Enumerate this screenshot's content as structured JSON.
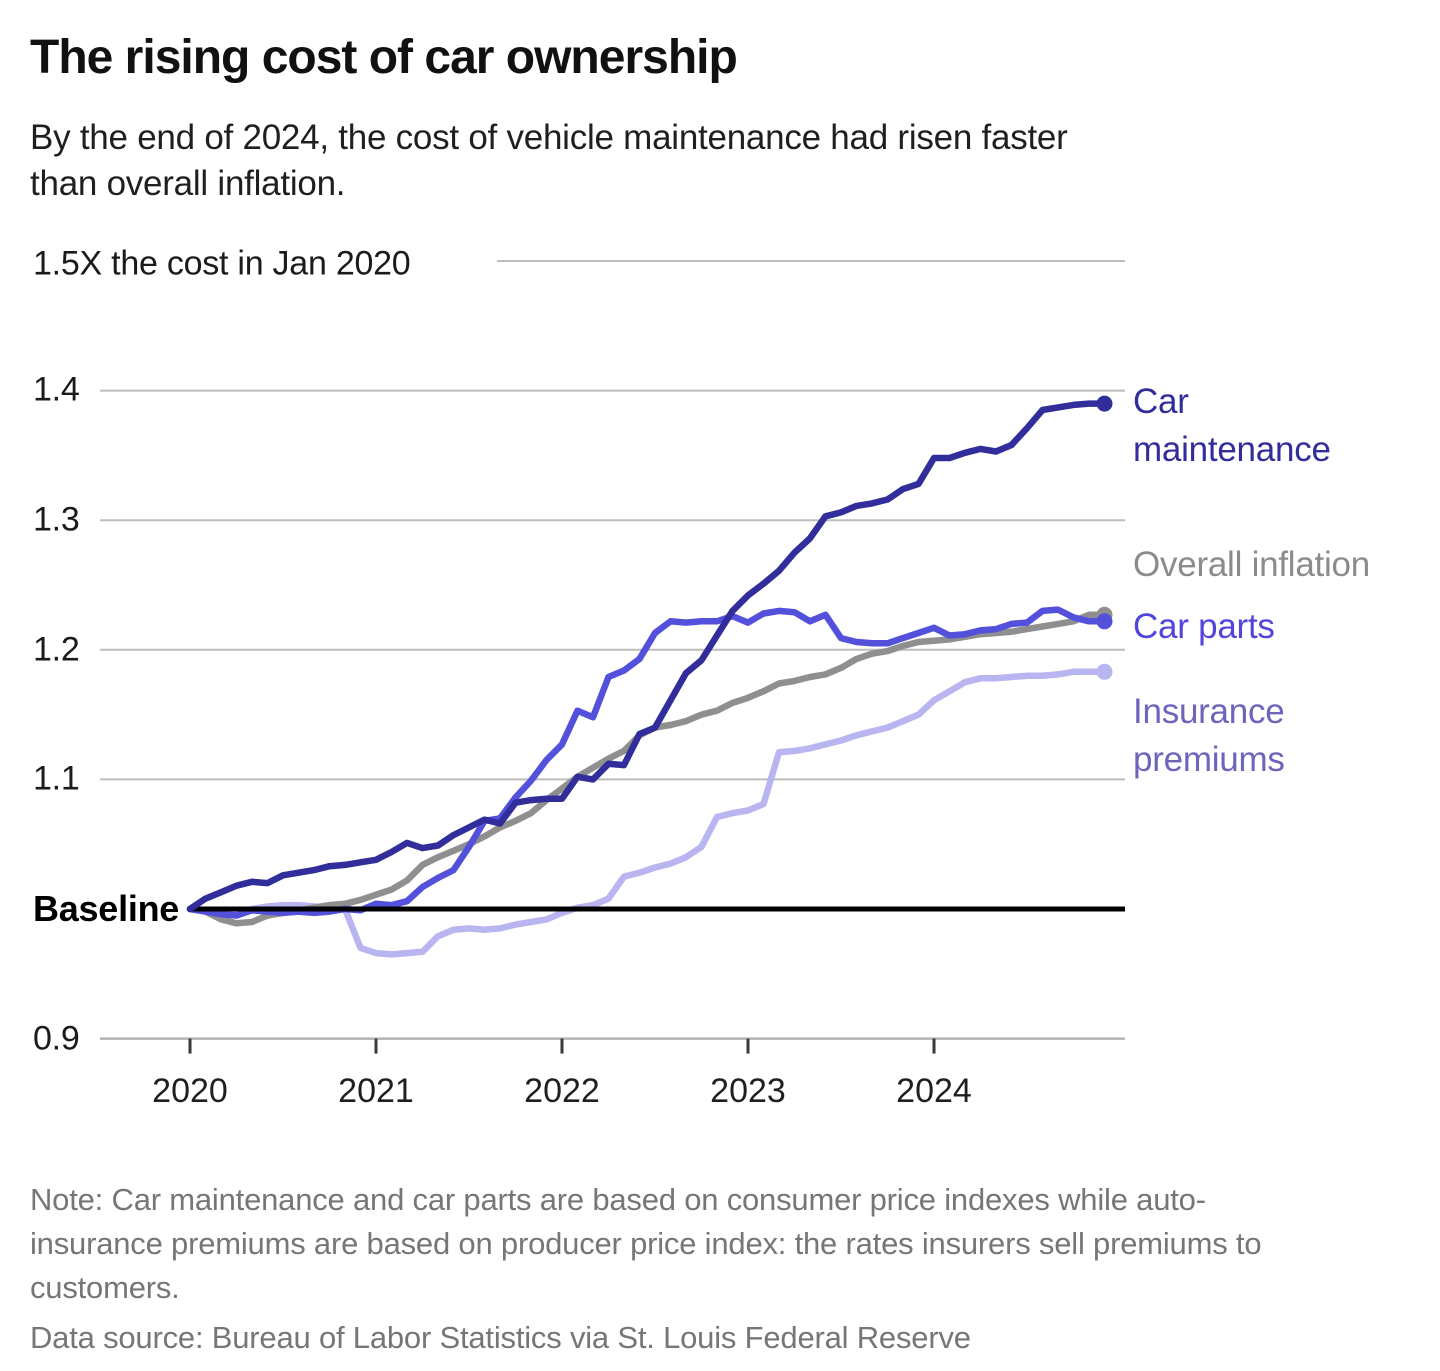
{
  "header": {
    "title": "The rising cost of car ownership",
    "subtitle": "By the end of 2024, the cost of vehicle maintenance had risen faster than overall inflation."
  },
  "chart_data": {
    "type": "line",
    "title": "The rising cost of car ownership",
    "x_unit": "month",
    "x_range": [
      "Jan 2020",
      "Dec 2024"
    ],
    "x_tick_labels": [
      "2020",
      "2021",
      "2022",
      "2023",
      "2024"
    ],
    "y_axis": {
      "top_label": "1.5X the cost in Jan 2020",
      "tick_labels": [
        "1.4",
        "1.3",
        "1.2",
        "1.1"
      ],
      "tick_values": [
        1.4,
        1.3,
        1.2,
        1.1
      ],
      "baseline_label": "Baseline",
      "baseline_value": 1.0,
      "bottom_tick_label": "0.9",
      "bottom_tick_value": 0.9,
      "range": [
        0.9,
        1.5
      ]
    },
    "grid": true,
    "legend_position": "right",
    "series": [
      {
        "name": "Car maintenance",
        "label_lines": [
          "Car",
          "maintenance"
        ],
        "color": "#312d9b",
        "label_color": "#312d9b",
        "end_value": 1.39,
        "values": [
          1.0,
          1.008,
          1.013,
          1.018,
          1.021,
          1.02,
          1.026,
          1.028,
          1.03,
          1.033,
          1.034,
          1.036,
          1.038,
          1.044,
          1.051,
          1.047,
          1.049,
          1.057,
          1.063,
          1.069,
          1.066,
          1.082,
          1.084,
          1.085,
          1.085,
          1.102,
          1.1,
          1.112,
          1.111,
          1.135,
          1.14,
          1.161,
          1.182,
          1.192,
          1.211,
          1.23,
          1.242,
          1.251,
          1.261,
          1.275,
          1.286,
          1.303,
          1.306,
          1.311,
          1.313,
          1.316,
          1.324,
          1.328,
          1.348,
          1.348,
          1.352,
          1.355,
          1.353,
          1.358,
          1.371,
          1.385,
          1.387,
          1.389,
          1.39,
          1.39
        ]
      },
      {
        "name": "Overall inflation",
        "label_lines": [
          "Overall inflation"
        ],
        "color": "#8f8f8f",
        "label_color": "#8b8b8b",
        "end_value": 1.227,
        "values": [
          1.0,
          0.998,
          0.992,
          0.989,
          0.99,
          0.995,
          0.997,
          0.999,
          1.001,
          1.003,
          1.004,
          1.007,
          1.011,
          1.015,
          1.022,
          1.034,
          1.04,
          1.045,
          1.05,
          1.056,
          1.063,
          1.068,
          1.074,
          1.084,
          1.093,
          1.102,
          1.109,
          1.116,
          1.122,
          1.134,
          1.14,
          1.142,
          1.145,
          1.15,
          1.153,
          1.159,
          1.163,
          1.168,
          1.174,
          1.176,
          1.179,
          1.181,
          1.186,
          1.193,
          1.197,
          1.199,
          1.203,
          1.206,
          1.207,
          1.208,
          1.21,
          1.212,
          1.213,
          1.214,
          1.216,
          1.218,
          1.22,
          1.222,
          1.227,
          1.227
        ]
      },
      {
        "name": "Car parts",
        "label_lines": [
          "Car parts"
        ],
        "color": "#5350dc",
        "label_color": "#5145dd",
        "end_value": 1.222,
        "values": [
          1.0,
          0.998,
          0.996,
          0.995,
          0.999,
          0.998,
          0.997,
          0.998,
          0.997,
          0.998,
          1.0,
          0.999,
          1.004,
          1.003,
          1.006,
          1.017,
          1.024,
          1.03,
          1.048,
          1.068,
          1.07,
          1.086,
          1.099,
          1.115,
          1.127,
          1.153,
          1.148,
          1.179,
          1.184,
          1.193,
          1.213,
          1.222,
          1.221,
          1.222,
          1.222,
          1.226,
          1.221,
          1.228,
          1.23,
          1.229,
          1.222,
          1.227,
          1.209,
          1.206,
          1.205,
          1.205,
          1.209,
          1.213,
          1.217,
          1.211,
          1.212,
          1.215,
          1.216,
          1.22,
          1.221,
          1.23,
          1.231,
          1.225,
          1.222,
          1.222
        ]
      },
      {
        "name": "Insurance premiums",
        "label_lines": [
          "Insurance",
          "premiums"
        ],
        "color": "#b8b5f0",
        "label_color": "#6c65bb",
        "end_value": 1.183,
        "values": [
          1.0,
          0.999,
          0.998,
          0.996,
          1.0,
          1.002,
          1.003,
          1.003,
          1.002,
          1.001,
          1.0,
          0.97,
          0.966,
          0.965,
          0.966,
          0.967,
          0.979,
          0.984,
          0.985,
          0.984,
          0.985,
          0.988,
          0.99,
          0.992,
          0.997,
          1.001,
          1.003,
          1.008,
          1.025,
          1.028,
          1.032,
          1.035,
          1.04,
          1.048,
          1.071,
          1.074,
          1.076,
          1.081,
          1.121,
          1.122,
          1.124,
          1.127,
          1.13,
          1.134,
          1.137,
          1.14,
          1.145,
          1.15,
          1.161,
          1.168,
          1.175,
          1.178,
          1.178,
          1.179,
          1.18,
          1.18,
          1.181,
          1.183,
          1.183,
          1.183
        ]
      }
    ]
  },
  "notes": {
    "note": "Note: Car maintenance and car parts are based on consumer price indexes while auto-insurance premiums are based on producer price index: the rates insurers sell premiums to customers.",
    "source": "Data source: Bureau of Labor Statistics via St. Louis Federal Reserve"
  }
}
